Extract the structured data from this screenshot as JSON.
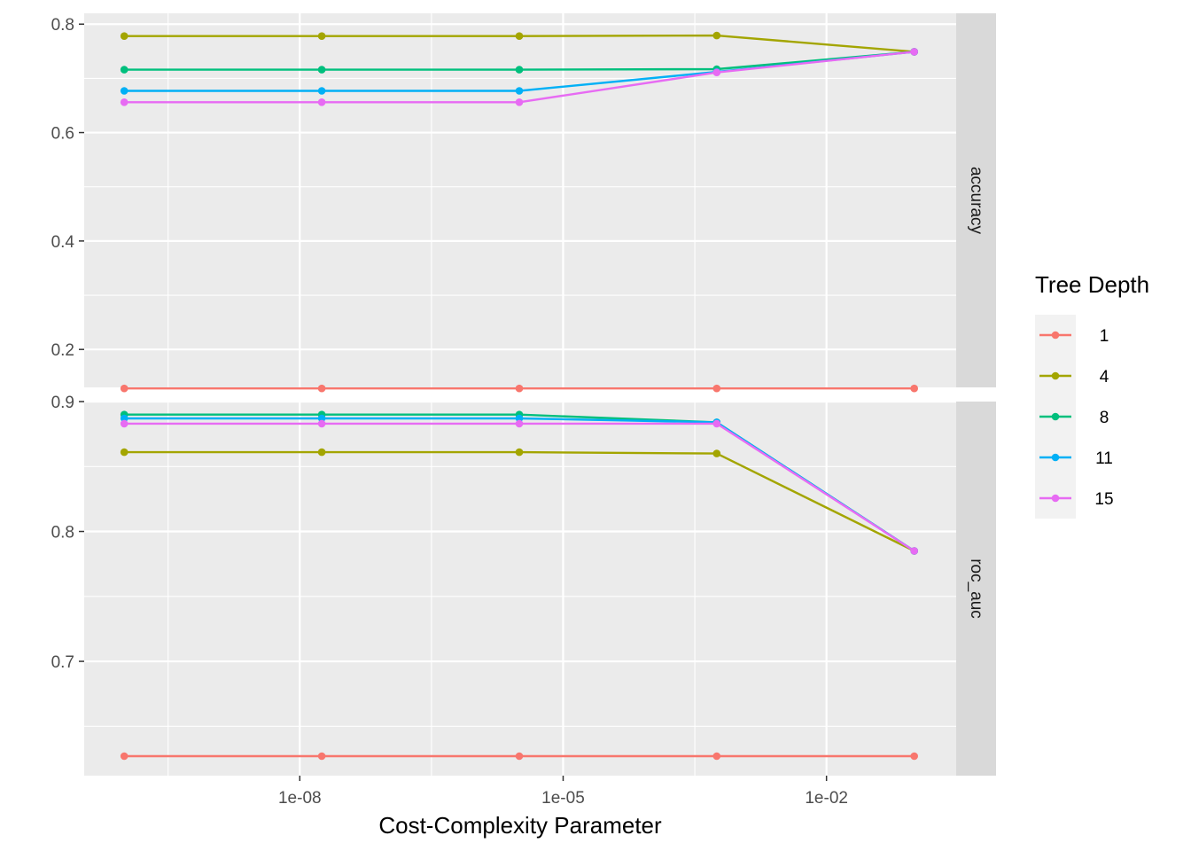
{
  "chart_data": {
    "type": "line",
    "x_title": "Cost-Complexity Parameter",
    "x_scale": "log10",
    "x_ticks": [
      1e-08,
      1e-05,
      0.01
    ],
    "x_tick_labels": [
      "1e-08",
      "1e-05",
      "1e-02"
    ],
    "x_values": [
      1e-10,
      1.7783e-08,
      3.1623e-06,
      0.00056234,
      0.1
    ],
    "legend": {
      "title": "Tree Depth",
      "position": "right"
    },
    "grid": true,
    "series_colors": [
      "#F8766D",
      "#A3A500",
      "#00BF7D",
      "#00B0F6",
      "#E76BF3"
    ],
    "series_names": [
      "1",
      "4",
      "8",
      "11",
      "15"
    ],
    "facets": [
      {
        "label": "accuracy",
        "ylim": [
          0.13,
          0.82
        ],
        "y_ticks": [
          0.2,
          0.4,
          0.6,
          0.8
        ],
        "y_tick_labels": [
          "0.2",
          "0.4",
          "0.6",
          "0.8"
        ],
        "series": [
          {
            "name": "1",
            "values": [
              0.128,
              0.128,
              0.128,
              0.128,
              0.128
            ]
          },
          {
            "name": "4",
            "values": [
              0.778,
              0.778,
              0.778,
              0.779,
              0.749
            ]
          },
          {
            "name": "8",
            "values": [
              0.716,
              0.716,
              0.716,
              0.717,
              0.749
            ]
          },
          {
            "name": "11",
            "values": [
              0.677,
              0.677,
              0.677,
              0.712,
              0.749
            ]
          },
          {
            "name": "15",
            "values": [
              0.656,
              0.656,
              0.656,
              0.711,
              0.749
            ]
          }
        ]
      },
      {
        "label": "roc_auc",
        "ylim": [
          0.612,
          0.9
        ],
        "y_ticks": [
          0.7,
          0.8,
          0.9
        ],
        "y_tick_labels": [
          "0.7",
          "0.8",
          "0.9"
        ],
        "series": [
          {
            "name": "1",
            "values": [
              0.627,
              0.627,
              0.627,
              0.627,
              0.627
            ]
          },
          {
            "name": "4",
            "values": [
              0.861,
              0.861,
              0.861,
              0.86,
              0.785
            ]
          },
          {
            "name": "8",
            "values": [
              0.89,
              0.89,
              0.89,
              0.884,
              0.785
            ]
          },
          {
            "name": "11",
            "values": [
              0.887,
              0.887,
              0.887,
              0.884,
              0.785
            ]
          },
          {
            "name": "15",
            "values": [
              0.883,
              0.883,
              0.883,
              0.883,
              0.785
            ]
          }
        ]
      }
    ]
  }
}
